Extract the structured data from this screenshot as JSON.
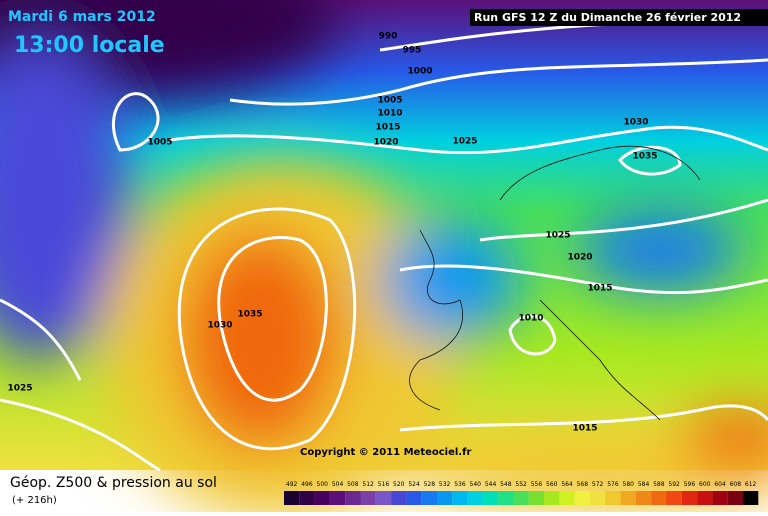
{
  "header": {
    "date": "Mardi 6 mars 2012",
    "time": "13:00 locale",
    "run": "Run GFS 12 Z du Dimanche 26 février 2012"
  },
  "isobar_labels": [
    "990",
    "995",
    "1000",
    "1005",
    "1010",
    "1015",
    "1020",
    "1025",
    "1030",
    "1035",
    "1005",
    "1035",
    "1030",
    "1025",
    "1025",
    "1020",
    "1015",
    "1010",
    "1015"
  ],
  "copyright": "Copyright © 2011 Meteociel.fr",
  "footer": {
    "title": "Géop. Z500 & pression au sol",
    "lead": "(+ 216h)"
  },
  "scale": {
    "values": [
      492,
      496,
      500,
      504,
      508,
      512,
      516,
      520,
      524,
      528,
      532,
      536,
      540,
      544,
      548,
      552,
      556,
      560,
      564,
      568,
      572,
      576,
      580,
      584,
      588,
      592,
      596,
      600,
      604,
      608,
      612
    ],
    "colors": [
      "#1a0030",
      "#300048",
      "#480060",
      "#5a1078",
      "#6a2890",
      "#7a40a8",
      "#7858c8",
      "#4848d8",
      "#2858e8",
      "#1878f0",
      "#0898f0",
      "#00b8f0",
      "#00d0e0",
      "#00e0b8",
      "#20e088",
      "#48e058",
      "#78e030",
      "#a8e820",
      "#d0f020",
      "#f0f040",
      "#f0e040",
      "#f0c830",
      "#f0a820",
      "#f08818",
      "#f06810",
      "#f04810",
      "#e02810",
      "#c81010",
      "#a00010",
      "#780010",
      "#000000"
    ]
  }
}
